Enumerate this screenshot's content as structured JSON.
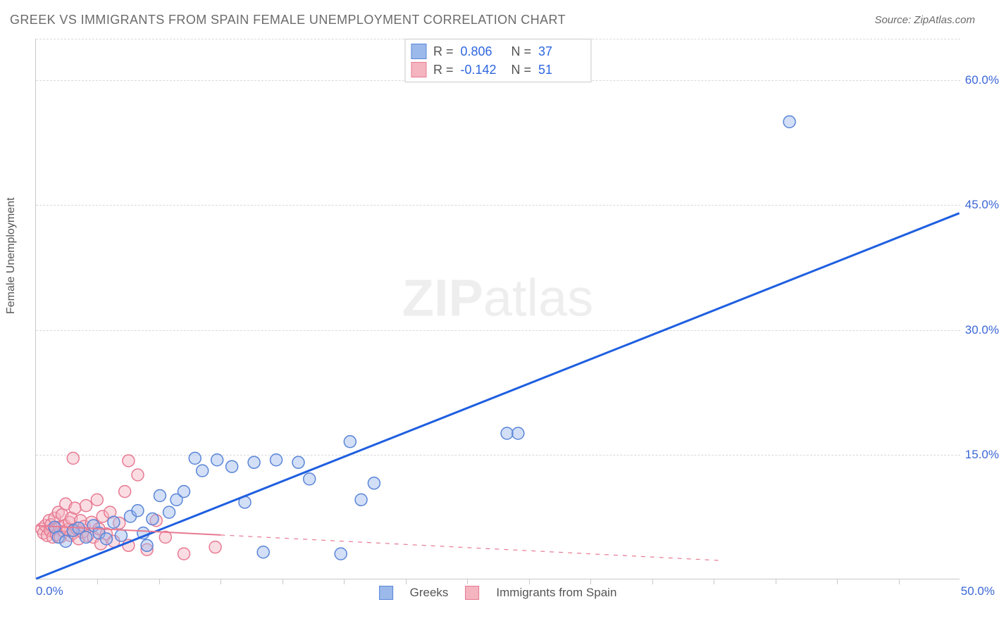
{
  "title": "GREEK VS IMMIGRANTS FROM SPAIN FEMALE UNEMPLOYMENT CORRELATION CHART",
  "source_label": "Source: ZipAtlas.com",
  "y_axis_label": "Female Unemployment",
  "watermark": {
    "part1": "ZIP",
    "part2": "atlas"
  },
  "chart": {
    "type": "scatter-with-trendlines",
    "x_domain": [
      0,
      50
    ],
    "y_domain": [
      0,
      65
    ],
    "x_ticks_major": [
      0,
      50
    ],
    "x_tick_labels": [
      "0.0%",
      "50.0%"
    ],
    "x_ticks_minor": [
      3.33,
      6.67,
      10,
      13.33,
      16.67,
      20,
      23.33,
      26.67,
      30,
      33.33,
      36.67,
      40,
      43.33,
      46.67
    ],
    "y_ticks": [
      15,
      30,
      45,
      60
    ],
    "y_tick_labels": [
      "15.0%",
      "30.0%",
      "45.0%",
      "60.0%"
    ],
    "y_grid_at": [
      15,
      30,
      45,
      60,
      65
    ],
    "background_color": "#ffffff",
    "grid_color": "#d9d9d9",
    "axis_color": "#c9c9c9",
    "text_color": "#6b6b6b",
    "tick_label_color": "#3b67d6",
    "marker_radius": 8.5,
    "marker_stroke_width": 1.5,
    "marker_fill_opacity": 0.45,
    "series": {
      "greeks": {
        "label": "Greeks",
        "color_fill": "#9bb9ea",
        "color_stroke": "#5a85d8",
        "R_label": "R =",
        "R_value": "0.806",
        "N_label": "N =",
        "N_value": "37",
        "trendline": {
          "color": "#1f5fe0",
          "width": 3,
          "dash": "none",
          "p1": [
            0,
            0
          ],
          "p2": [
            50,
            44
          ]
        },
        "points": [
          [
            1.0,
            6.2
          ],
          [
            1.2,
            5.0
          ],
          [
            1.6,
            4.5
          ],
          [
            2.0,
            5.8
          ],
          [
            2.3,
            6.1
          ],
          [
            2.7,
            5.0
          ],
          [
            3.1,
            6.4
          ],
          [
            3.4,
            5.5
          ],
          [
            3.8,
            4.8
          ],
          [
            4.2,
            6.8
          ],
          [
            4.6,
            5.2
          ],
          [
            5.1,
            7.5
          ],
          [
            5.5,
            8.2
          ],
          [
            5.8,
            5.5
          ],
          [
            6.3,
            7.2
          ],
          [
            6.7,
            10.0
          ],
          [
            7.2,
            8.0
          ],
          [
            7.6,
            9.5
          ],
          [
            8.0,
            10.5
          ],
          [
            8.6,
            14.5
          ],
          [
            9.0,
            13.0
          ],
          [
            9.8,
            14.3
          ],
          [
            10.6,
            13.5
          ],
          [
            11.3,
            9.2
          ],
          [
            11.8,
            14.0
          ],
          [
            12.3,
            3.2
          ],
          [
            13.0,
            14.3
          ],
          [
            14.2,
            14.0
          ],
          [
            14.8,
            12.0
          ],
          [
            16.5,
            3.0
          ],
          [
            17.0,
            16.5
          ],
          [
            17.6,
            9.5
          ],
          [
            18.3,
            11.5
          ],
          [
            25.5,
            17.5
          ],
          [
            26.1,
            17.5
          ],
          [
            40.8,
            55.0
          ],
          [
            6.0,
            4.0
          ]
        ]
      },
      "spain": {
        "label": "Immigrants from Spain",
        "color_fill": "#f4b4c0",
        "color_stroke": "#e77a92",
        "R_label": "R =",
        "R_value": "-0.142",
        "N_label": "N =",
        "N_value": "51",
        "trendline": {
          "color": "#e77a92",
          "width": 2,
          "dash": "6,7",
          "p1": [
            0,
            6.4
          ],
          "p2": [
            37,
            2.2
          ]
        },
        "trendline_solid_until_x": 10,
        "points": [
          [
            0.3,
            6.0
          ],
          [
            0.4,
            5.5
          ],
          [
            0.5,
            6.4
          ],
          [
            0.6,
            5.2
          ],
          [
            0.7,
            7.0
          ],
          [
            0.75,
            5.8
          ],
          [
            0.8,
            6.5
          ],
          [
            0.9,
            5.0
          ],
          [
            1.0,
            7.3
          ],
          [
            1.05,
            6.0
          ],
          [
            1.1,
            5.3
          ],
          [
            1.2,
            8.0
          ],
          [
            1.25,
            6.2
          ],
          [
            1.3,
            5.0
          ],
          [
            1.4,
            7.7
          ],
          [
            1.5,
            5.7
          ],
          [
            1.55,
            6.4
          ],
          [
            1.6,
            9.0
          ],
          [
            1.7,
            5.9
          ],
          [
            1.8,
            6.8
          ],
          [
            1.85,
            5.2
          ],
          [
            1.9,
            7.3
          ],
          [
            2.0,
            5.5
          ],
          [
            2.1,
            8.5
          ],
          [
            2.2,
            6.0
          ],
          [
            2.3,
            4.8
          ],
          [
            2.4,
            7.0
          ],
          [
            2.5,
            5.6
          ],
          [
            2.6,
            6.3
          ],
          [
            2.7,
            8.8
          ],
          [
            2.8,
            5.2
          ],
          [
            3.0,
            6.8
          ],
          [
            3.1,
            5.0
          ],
          [
            3.3,
            9.5
          ],
          [
            3.4,
            6.0
          ],
          [
            3.6,
            7.5
          ],
          [
            3.8,
            5.4
          ],
          [
            4.0,
            8.0
          ],
          [
            4.2,
            4.5
          ],
          [
            4.5,
            6.7
          ],
          [
            4.8,
            10.5
          ],
          [
            5.0,
            4.0
          ],
          [
            5.5,
            12.5
          ],
          [
            6.0,
            3.5
          ],
          [
            6.5,
            7.0
          ],
          [
            7.0,
            5.0
          ],
          [
            8.0,
            3.0
          ],
          [
            2.0,
            14.5
          ],
          [
            5.0,
            14.2
          ],
          [
            9.7,
            3.8
          ],
          [
            3.5,
            4.2
          ]
        ]
      }
    }
  }
}
